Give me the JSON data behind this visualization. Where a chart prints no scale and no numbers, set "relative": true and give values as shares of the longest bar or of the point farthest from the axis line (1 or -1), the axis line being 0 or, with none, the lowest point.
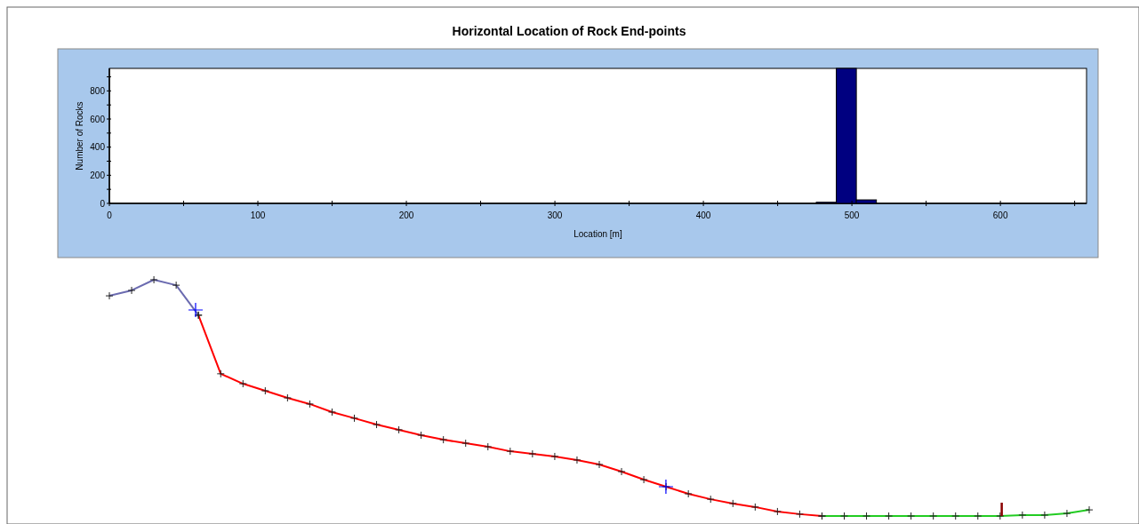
{
  "chart_data": [
    {
      "type": "histogram",
      "title": "Horizontal Location of Rock End-points",
      "xlabel": "Location [m]",
      "ylabel": "Number of Rocks",
      "bins": [
        476,
        489.5,
        503,
        516.5
      ],
      "values": [
        8,
        960,
        25
      ],
      "color": "#000080",
      "xlim": [
        0,
        658
      ],
      "xticks": [
        0,
        {
          "value": 50,
          "label": null
        },
        100,
        {
          "value": 150,
          "label": null
        },
        200,
        {
          "value": 250,
          "label": null
        },
        300,
        {
          "value": 350,
          "label": null
        },
        400,
        {
          "value": 450,
          "label": null
        },
        500,
        {
          "value": 550,
          "label": null
        },
        600,
        {
          "value": 650,
          "label": null
        }
      ],
      "ylim": [
        0,
        960
      ],
      "yticks": [
        0,
        {
          "value": 100,
          "label": null
        },
        200,
        {
          "value": 300,
          "label": null
        },
        400,
        {
          "value": 500,
          "label": null
        },
        600,
        {
          "value": 700,
          "label": null
        },
        800,
        {
          "value": 900,
          "label": null
        }
      ],
      "grid": false
    },
    {
      "type": "line",
      "relative": true,
      "marker": "cross",
      "categories": [
        null,
        null,
        null,
        null,
        null,
        null,
        null,
        null,
        null,
        null,
        null,
        null,
        null,
        null,
        null,
        null,
        null,
        null,
        null,
        null,
        null,
        null,
        null,
        null,
        null,
        null,
        null,
        null,
        null,
        null,
        null,
        null,
        null,
        null,
        null,
        null,
        null,
        null,
        null,
        null,
        null,
        null,
        null,
        null,
        null
      ],
      "series": [
        {
          "color": "#6b6bb0",
          "values": [
            0.932,
            0.955,
            1,
            0.977,
            0.85,
            null,
            null,
            null,
            null,
            null,
            null,
            null,
            null,
            null,
            null,
            null,
            null,
            null,
            null,
            null,
            null,
            null,
            null,
            null,
            null,
            null,
            null,
            null,
            null,
            null,
            null,
            null,
            null,
            null,
            null,
            null,
            null,
            null,
            null,
            null,
            null,
            null,
            null,
            null,
            null
          ]
        },
        {
          "color": "#ff0000",
          "values": [
            null,
            null,
            null,
            null,
            0.85,
            0.602,
            0.56,
            0.53,
            0.5,
            0.474,
            0.44,
            0.414,
            0.387,
            0.365,
            0.342,
            0.323,
            0.308,
            0.293,
            0.274,
            0.263,
            0.252,
            0.237,
            0.218,
            0.188,
            0.154,
            0.124,
            0.094,
            0.071,
            0.053,
            0.038,
            0.019,
            0.008,
            0,
            null,
            null,
            null,
            null,
            null,
            null,
            null,
            null,
            null,
            null,
            null,
            null
          ]
        },
        {
          "color": "#22cc22",
          "values": [
            null,
            null,
            null,
            null,
            null,
            null,
            null,
            null,
            null,
            null,
            null,
            null,
            null,
            null,
            null,
            null,
            null,
            null,
            null,
            null,
            null,
            null,
            null,
            null,
            null,
            null,
            null,
            null,
            null,
            null,
            null,
            null,
            0,
            0,
            0,
            0,
            0,
            0,
            0,
            0,
            0,
            0.004,
            0.004,
            0.011,
            0.026
          ]
        }
      ]
    }
  ]
}
